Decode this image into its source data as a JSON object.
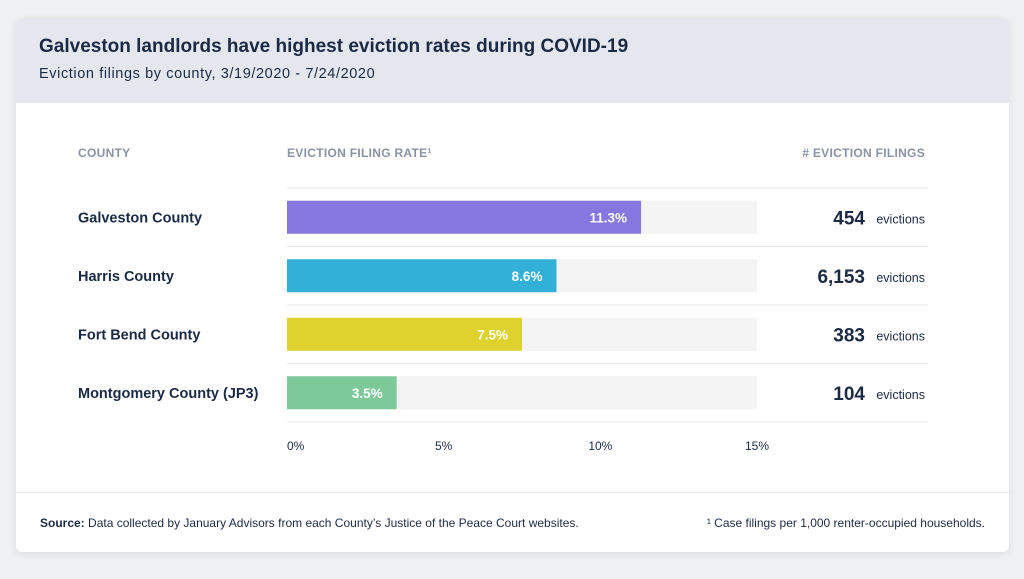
{
  "header": {
    "title": "Galveston landlords have highest eviction rates during COVID-19",
    "subtitle": "Eviction filings by county, 3/19/2020 - 7/24/2020"
  },
  "columns": {
    "county": "COUNTY",
    "rate": "EVICTION FILING RATE¹",
    "filings": "# EVICTION FILINGS"
  },
  "chart_data": {
    "type": "bar",
    "orientation": "horizontal",
    "categories": [
      "Galveston County",
      "Harris County",
      "Fort Bend County",
      "Montgomery County (JP3)"
    ],
    "values": [
      11.3,
      8.6,
      7.5,
      3.5
    ],
    "value_labels": [
      "11.3%",
      "8.6%",
      "7.5%",
      "3.5%"
    ],
    "colors": [
      "#8676df",
      "#33b0d8",
      "#dfd12e",
      "#7ec99a"
    ],
    "track_color": "#f4f4f4",
    "xlim": [
      0,
      15
    ],
    "x_ticks": [
      0,
      5,
      10,
      15
    ],
    "x_tick_labels": [
      "0%",
      "5%",
      "10%",
      "15%"
    ],
    "filings": [
      "454",
      "6,153",
      "383",
      "104"
    ],
    "filings_unit": "evictions"
  },
  "footer": {
    "source_label": "Source:",
    "source_text": " Data collected by January Advisors from each County’s Justice of the Peace Court websites.",
    "footnote": "¹ Case filings per 1,000 renter-occupied households."
  }
}
